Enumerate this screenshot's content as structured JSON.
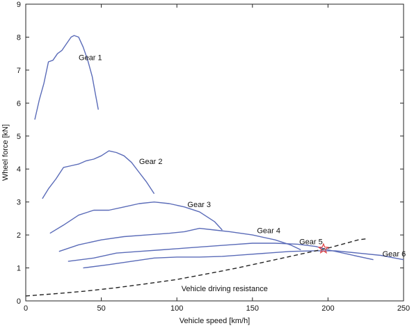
{
  "chart_data": {
    "type": "line",
    "xlabel": "Vehicle speed [km/h]",
    "ylabel": "Wheel force [kN]",
    "xlim": [
      0,
      250
    ],
    "ylim": [
      0,
      9
    ],
    "xticks": [
      0,
      50,
      100,
      150,
      200,
      250
    ],
    "yticks": [
      0,
      1,
      2,
      3,
      4,
      5,
      6,
      7,
      8,
      9
    ],
    "grid": false,
    "colors": {
      "curve": "#5a6bb8",
      "resistance": "#222222",
      "marker": "#e04040"
    },
    "series": [
      {
        "name": "Gear 1",
        "label_at": [
          35,
          7.3
        ],
        "points": [
          [
            6,
            5.5
          ],
          [
            9,
            6.1
          ],
          [
            12,
            6.6
          ],
          [
            15,
            7.25
          ],
          [
            18,
            7.3
          ],
          [
            21,
            7.5
          ],
          [
            24,
            7.6
          ],
          [
            27,
            7.8
          ],
          [
            30,
            8.0
          ],
          [
            32,
            8.05
          ],
          [
            35,
            8.0
          ],
          [
            38,
            7.7
          ],
          [
            41,
            7.3
          ],
          [
            44,
            6.8
          ],
          [
            46,
            6.3
          ],
          [
            48,
            5.8
          ]
        ]
      },
      {
        "name": "Gear 2",
        "label_at": [
          75,
          4.15
        ],
        "points": [
          [
            11,
            3.1
          ],
          [
            15,
            3.4
          ],
          [
            20,
            3.7
          ],
          [
            25,
            4.05
          ],
          [
            30,
            4.1
          ],
          [
            35,
            4.15
          ],
          [
            40,
            4.25
          ],
          [
            45,
            4.3
          ],
          [
            50,
            4.4
          ],
          [
            55,
            4.55
          ],
          [
            60,
            4.5
          ],
          [
            65,
            4.4
          ],
          [
            70,
            4.2
          ],
          [
            75,
            3.9
          ],
          [
            80,
            3.6
          ],
          [
            85,
            3.25
          ]
        ]
      },
      {
        "name": "Gear 3",
        "label_at": [
          107,
          2.85
        ],
        "points": [
          [
            16,
            2.05
          ],
          [
            25,
            2.3
          ],
          [
            35,
            2.6
          ],
          [
            45,
            2.75
          ],
          [
            55,
            2.75
          ],
          [
            65,
            2.85
          ],
          [
            75,
            2.95
          ],
          [
            85,
            3.0
          ],
          [
            95,
            2.95
          ],
          [
            105,
            2.85
          ],
          [
            115,
            2.7
          ],
          [
            125,
            2.4
          ],
          [
            130,
            2.15
          ]
        ]
      },
      {
        "name": "Gear 4",
        "label_at": [
          153,
          2.05
        ],
        "points": [
          [
            22,
            1.5
          ],
          [
            35,
            1.7
          ],
          [
            50,
            1.85
          ],
          [
            65,
            1.95
          ],
          [
            80,
            2.0
          ],
          [
            95,
            2.05
          ],
          [
            105,
            2.1
          ],
          [
            115,
            2.2
          ],
          [
            125,
            2.15
          ],
          [
            135,
            2.1
          ],
          [
            150,
            2.0
          ],
          [
            165,
            1.85
          ],
          [
            175,
            1.7
          ],
          [
            182,
            1.55
          ]
        ]
      },
      {
        "name": "Gear 5",
        "label_at": [
          181,
          1.72
        ],
        "points": [
          [
            28,
            1.2
          ],
          [
            45,
            1.3
          ],
          [
            60,
            1.45
          ],
          [
            75,
            1.5
          ],
          [
            90,
            1.55
          ],
          [
            105,
            1.6
          ],
          [
            120,
            1.65
          ],
          [
            135,
            1.7
          ],
          [
            150,
            1.75
          ],
          [
            165,
            1.75
          ],
          [
            180,
            1.72
          ],
          [
            192,
            1.65
          ],
          [
            200,
            1.55
          ],
          [
            215,
            1.4
          ],
          [
            230,
            1.25
          ]
        ]
      },
      {
        "name": "Gear 6",
        "label_at": [
          236,
          1.35
        ],
        "points": [
          [
            38,
            1.0
          ],
          [
            55,
            1.1
          ],
          [
            70,
            1.2
          ],
          [
            85,
            1.3
          ],
          [
            100,
            1.33
          ],
          [
            115,
            1.33
          ],
          [
            130,
            1.35
          ],
          [
            145,
            1.4
          ],
          [
            160,
            1.45
          ],
          [
            175,
            1.5
          ],
          [
            190,
            1.52
          ],
          [
            205,
            1.52
          ],
          [
            220,
            1.45
          ],
          [
            235,
            1.38
          ],
          [
            250,
            1.25
          ]
        ]
      }
    ],
    "resistance": {
      "name": "Vehicle driving resistance",
      "label_at": [
        103,
        0.3
      ],
      "points": [
        [
          0,
          0.15
        ],
        [
          20,
          0.22
        ],
        [
          40,
          0.3
        ],
        [
          60,
          0.4
        ],
        [
          80,
          0.52
        ],
        [
          100,
          0.65
        ],
        [
          120,
          0.82
        ],
        [
          140,
          1.0
        ],
        [
          160,
          1.2
        ],
        [
          180,
          1.4
        ],
        [
          200,
          1.6
        ],
        [
          220,
          1.85
        ],
        [
          225,
          1.88
        ]
      ]
    },
    "marker": {
      "x": 197,
      "y": 1.58
    }
  }
}
